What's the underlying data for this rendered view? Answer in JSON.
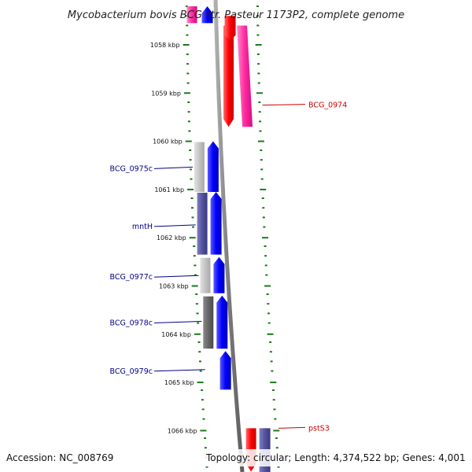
{
  "title": "Mycobacterium bovis BCG str. Pasteur 1173P2, complete genome",
  "footer": {
    "accession": "Accession: NC_008769",
    "topology": "Topology: circular; Length: 4,374,522 bp; Genes: 4,001"
  },
  "colors": {
    "background": "#ffffff",
    "backbone": "#7f7f7f",
    "tick": "#1a7a1a",
    "forward_gene": "#ff0000",
    "forward_feature": "#ff2aa0",
    "reverse_gene": "#0000ff",
    "reverse_label": "#00008b",
    "forward_label": "#cc0000"
  },
  "ruler": {
    "unit": "kbp",
    "ticks": [
      {
        "label": "1058 kbp",
        "kbp": 1058
      },
      {
        "label": "1059 kbp",
        "kbp": 1059
      },
      {
        "label": "1060 kbp",
        "kbp": 1060
      },
      {
        "label": "1061 kbp",
        "kbp": 1061
      },
      {
        "label": "1062 kbp",
        "kbp": 1062
      },
      {
        "label": "1063 kbp",
        "kbp": 1063
      },
      {
        "label": "1064 kbp",
        "kbp": 1064
      },
      {
        "label": "1065 kbp",
        "kbp": 1065
      },
      {
        "label": "1066 kbp",
        "kbp": 1066
      }
    ]
  },
  "features": [
    {
      "id": "top-reverse-stub",
      "strand": "reverse",
      "label": "",
      "start_kbp": 1057.2,
      "end_kbp": 1057.55
    },
    {
      "id": "BCG_0974",
      "strand": "forward",
      "label": "BCG_0974",
      "start_kbp": 1057.6,
      "end_kbp": 1059.7,
      "label_kbp": 1059.25
    },
    {
      "id": "BCG_0975c",
      "strand": "reverse",
      "label": "BCG_0975c",
      "start_kbp": 1060.0,
      "end_kbp": 1061.05,
      "label_kbp": 1060.55
    },
    {
      "id": "mntH",
      "strand": "reverse",
      "label": "mntH",
      "start_kbp": 1061.05,
      "end_kbp": 1062.35,
      "label_kbp": 1061.75
    },
    {
      "id": "BCG_0977c",
      "strand": "reverse",
      "label": "BCG_0977c",
      "start_kbp": 1062.4,
      "end_kbp": 1063.15,
      "label_kbp": 1062.8
    },
    {
      "id": "BCG_0978c",
      "strand": "reverse",
      "label": "BCG_0978c",
      "start_kbp": 1063.2,
      "end_kbp": 1064.3,
      "label_kbp": 1063.75
    },
    {
      "id": "BCG_0979c",
      "strand": "reverse",
      "label": "BCG_0979c",
      "start_kbp": 1064.35,
      "end_kbp": 1065.15,
      "label_kbp": 1064.75
    },
    {
      "id": "pstS3",
      "strand": "forward",
      "label": "pstS3",
      "start_kbp": 1065.95,
      "end_kbp": 1066.85,
      "label_kbp": 1065.95
    }
  ]
}
